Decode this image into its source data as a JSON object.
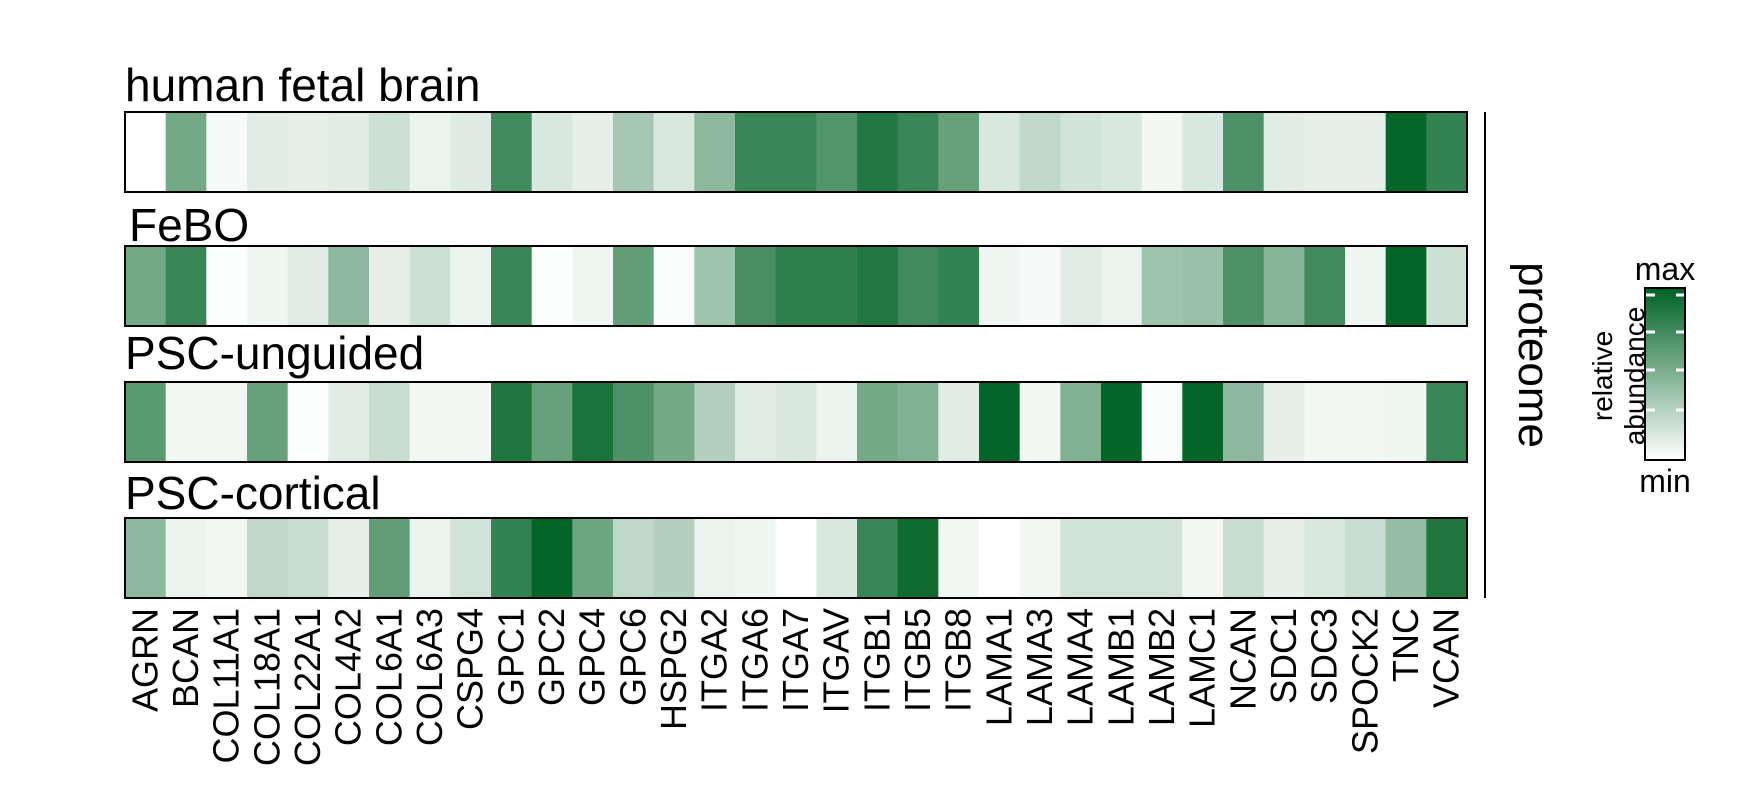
{
  "chart_data": {
    "type": "heatmap",
    "colors": {
      "min": "#ffffff",
      "max": "#006325"
    },
    "genes": [
      "AGRN",
      "BCAN",
      "COL11A1",
      "COL18A1",
      "COL22A1",
      "COL4A2",
      "COL6A1",
      "COL6A3",
      "CSPG4",
      "GPC1",
      "GPC2",
      "GPC4",
      "GPC6",
      "HSPG2",
      "ITGA2",
      "ITGA6",
      "ITGA7",
      "ITGAV",
      "ITGB1",
      "ITGB5",
      "ITGB8",
      "LAMA1",
      "LAMA3",
      "LAMA4",
      "LAMB1",
      "LAMB2",
      "LAMC1",
      "NCAN",
      "SDC1",
      "SDC3",
      "SPOCK2",
      "TNC",
      "VCAN"
    ],
    "panels": [
      {
        "title": "human fetal brain",
        "values": [
          0.0,
          0.55,
          0.03,
          0.12,
          0.1,
          0.12,
          0.2,
          0.08,
          0.13,
          0.75,
          0.15,
          0.1,
          0.35,
          0.15,
          0.45,
          0.78,
          0.78,
          0.68,
          0.87,
          0.78,
          0.6,
          0.15,
          0.25,
          0.18,
          0.15,
          0.05,
          0.15,
          0.7,
          0.12,
          0.1,
          0.1,
          0.98,
          0.8
        ]
      },
      {
        "title": "FeBO",
        "values": [
          0.55,
          0.78,
          0.01,
          0.06,
          0.12,
          0.45,
          0.1,
          0.2,
          0.08,
          0.78,
          0.01,
          0.06,
          0.62,
          0.02,
          0.38,
          0.72,
          0.82,
          0.82,
          0.87,
          0.75,
          0.8,
          0.06,
          0.03,
          0.12,
          0.08,
          0.38,
          0.4,
          0.7,
          0.48,
          0.75,
          0.06,
          0.99,
          0.2
        ]
      },
      {
        "title": "PSC-unguided",
        "values": [
          0.65,
          0.05,
          0.05,
          0.6,
          0.01,
          0.12,
          0.22,
          0.05,
          0.05,
          0.88,
          0.6,
          0.9,
          0.7,
          0.55,
          0.3,
          0.12,
          0.15,
          0.08,
          0.55,
          0.5,
          0.12,
          0.99,
          0.05,
          0.5,
          0.99,
          0.02,
          0.99,
          0.45,
          0.1,
          0.05,
          0.05,
          0.06,
          0.78
        ]
      },
      {
        "title": "PSC-cortical",
        "values": [
          0.45,
          0.08,
          0.05,
          0.25,
          0.22,
          0.1,
          0.62,
          0.08,
          0.18,
          0.8,
          0.99,
          0.58,
          0.25,
          0.3,
          0.08,
          0.06,
          0.0,
          0.15,
          0.78,
          0.95,
          0.05,
          0.0,
          0.05,
          0.18,
          0.18,
          0.18,
          0.05,
          0.22,
          0.1,
          0.15,
          0.22,
          0.42,
          0.88
        ]
      }
    ],
    "side_label": "proteome",
    "legend": {
      "label": "relative abundance",
      "max_label": "max",
      "min_label": "min"
    }
  }
}
